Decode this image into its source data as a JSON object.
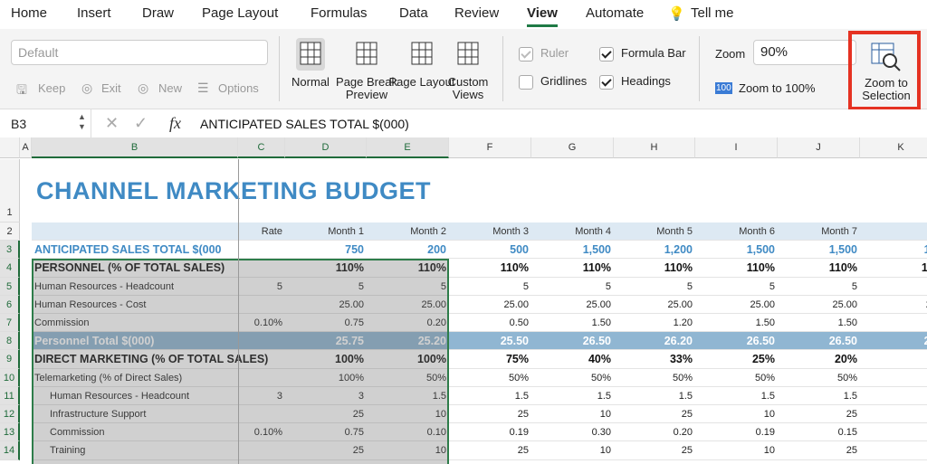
{
  "tabs": [
    "Home",
    "Insert",
    "Draw",
    "Page Layout",
    "Formulas",
    "Data",
    "Review",
    "View",
    "Automate",
    "Tell me"
  ],
  "ribbon": {
    "style_box": "Default",
    "view_buttons": [
      "Keep",
      "Exit",
      "New",
      "Options"
    ],
    "workbook_views": [
      "Normal",
      "Page Break Preview",
      "Page Layout",
      "Custom Views"
    ],
    "show": [
      "Ruler",
      "Formula Bar",
      "Gridlines",
      "Headings"
    ],
    "zoom_label": "Zoom",
    "zoom_value": "90%",
    "zoom100_icon": "100",
    "zoom100": "Zoom to 100%",
    "zoom_selection": "Zoom to Selection"
  },
  "formula_bar": {
    "cell": "B3",
    "fx": "fx",
    "content": "ANTICIPATED SALES TOTAL $(000)"
  },
  "columns": [
    "A",
    "B",
    "C",
    "D",
    "E",
    "F",
    "G",
    "H",
    "I",
    "J",
    "K"
  ],
  "row_numbers": [
    "1",
    "2",
    "3",
    "4",
    "5",
    "6",
    "7",
    "8",
    "9",
    "10",
    "11",
    "12",
    "13",
    "14"
  ],
  "sheet_title": "CHANNEL MARKETING BUDGET",
  "table": {
    "rows": [
      [
        "",
        "",
        "Rate",
        "Month 1",
        "Month 2",
        "Month 3",
        "Month 4",
        "Month 5",
        "Month 6",
        "Month 7",
        ""
      ],
      [
        "",
        "ANTICIPATED SALES TOTAL $(000",
        "",
        "750",
        "200",
        "500",
        "1,500",
        "1,200",
        "1,500",
        "1,500",
        "1,8"
      ],
      [
        "",
        "PERSONNEL (% OF TOTAL SALES)",
        "",
        "110%",
        "110%",
        "110%",
        "110%",
        "110%",
        "110%",
        "110%",
        "110"
      ],
      [
        "",
        "Human Resources - Headcount",
        "5",
        "5",
        "5",
        "5",
        "5",
        "5",
        "5",
        "5",
        ""
      ],
      [
        "",
        "Human Resources - Cost",
        "",
        "25.00",
        "25.00",
        "25.00",
        "25.00",
        "25.00",
        "25.00",
        "25.00",
        "25."
      ],
      [
        "",
        "Commission",
        "0.10%",
        "0.75",
        "0.20",
        "0.50",
        "1.50",
        "1.20",
        "1.50",
        "1.50",
        "1."
      ],
      [
        "",
        "Personnel Total $(000)",
        "",
        "25.75",
        "25.20",
        "25.50",
        "26.50",
        "26.20",
        "26.50",
        "26.50",
        "26."
      ],
      [
        "",
        "DIRECT MARKETING (% OF TOTAL SALES)",
        "",
        "100%",
        "100%",
        "75%",
        "40%",
        "33%",
        "25%",
        "20%",
        "10"
      ],
      [
        "",
        "Telemarketing  (% of Direct Sales)",
        "",
        "100%",
        "50%",
        "50%",
        "50%",
        "50%",
        "50%",
        "50%",
        ""
      ],
      [
        "",
        "Human Resources - Headcount",
        "3",
        "3",
        "1.5",
        "1.5",
        "1.5",
        "1.5",
        "1.5",
        "1.5",
        ""
      ],
      [
        "",
        "Infrastructure Support",
        "",
        "25",
        "10",
        "25",
        "10",
        "25",
        "10",
        "25",
        ""
      ],
      [
        "",
        "Commission",
        "0.10%",
        "0.75",
        "0.10",
        "0.19",
        "0.30",
        "0.20",
        "0.19",
        "0.15",
        "0."
      ],
      [
        "",
        "Training",
        "",
        "25",
        "10",
        "25",
        "10",
        "25",
        "10",
        "25",
        ""
      ]
    ]
  }
}
